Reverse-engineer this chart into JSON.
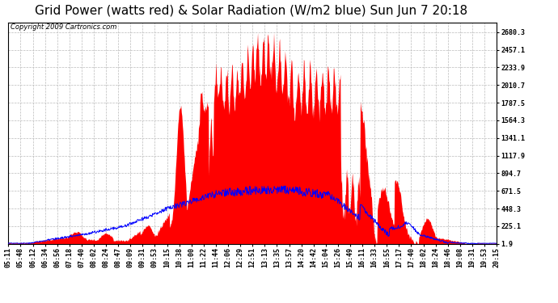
{
  "title": "Grid Power (watts red) & Solar Radiation (W/m2 blue) Sun Jun 7 20:18",
  "copyright": "Copyright 2009 Cartronics.com",
  "yticks": [
    1.9,
    225.1,
    448.3,
    671.5,
    894.7,
    1117.9,
    1341.1,
    1564.3,
    1787.5,
    2010.7,
    2233.9,
    2457.1,
    2680.3
  ],
  "ymin": 0,
  "ymax": 2800,
  "bg_color": "#ffffff",
  "plot_bg_color": "#ffffff",
  "grid_color": "#bbbbbb",
  "red_fill_color": "#ff0000",
  "blue_line_color": "#0000ff",
  "x_labels": [
    "05:11",
    "05:48",
    "06:12",
    "06:34",
    "06:56",
    "07:18",
    "07:40",
    "08:02",
    "08:24",
    "08:47",
    "09:09",
    "09:31",
    "09:53",
    "10:15",
    "10:38",
    "11:00",
    "11:22",
    "11:44",
    "12:06",
    "12:29",
    "12:51",
    "13:13",
    "13:35",
    "13:57",
    "14:20",
    "14:42",
    "15:04",
    "15:26",
    "15:49",
    "16:11",
    "16:33",
    "16:55",
    "17:17",
    "17:40",
    "18:02",
    "18:24",
    "18:46",
    "19:08",
    "19:31",
    "19:53",
    "20:15"
  ],
  "title_fontsize": 11,
  "copyright_fontsize": 6,
  "tick_fontsize": 6
}
